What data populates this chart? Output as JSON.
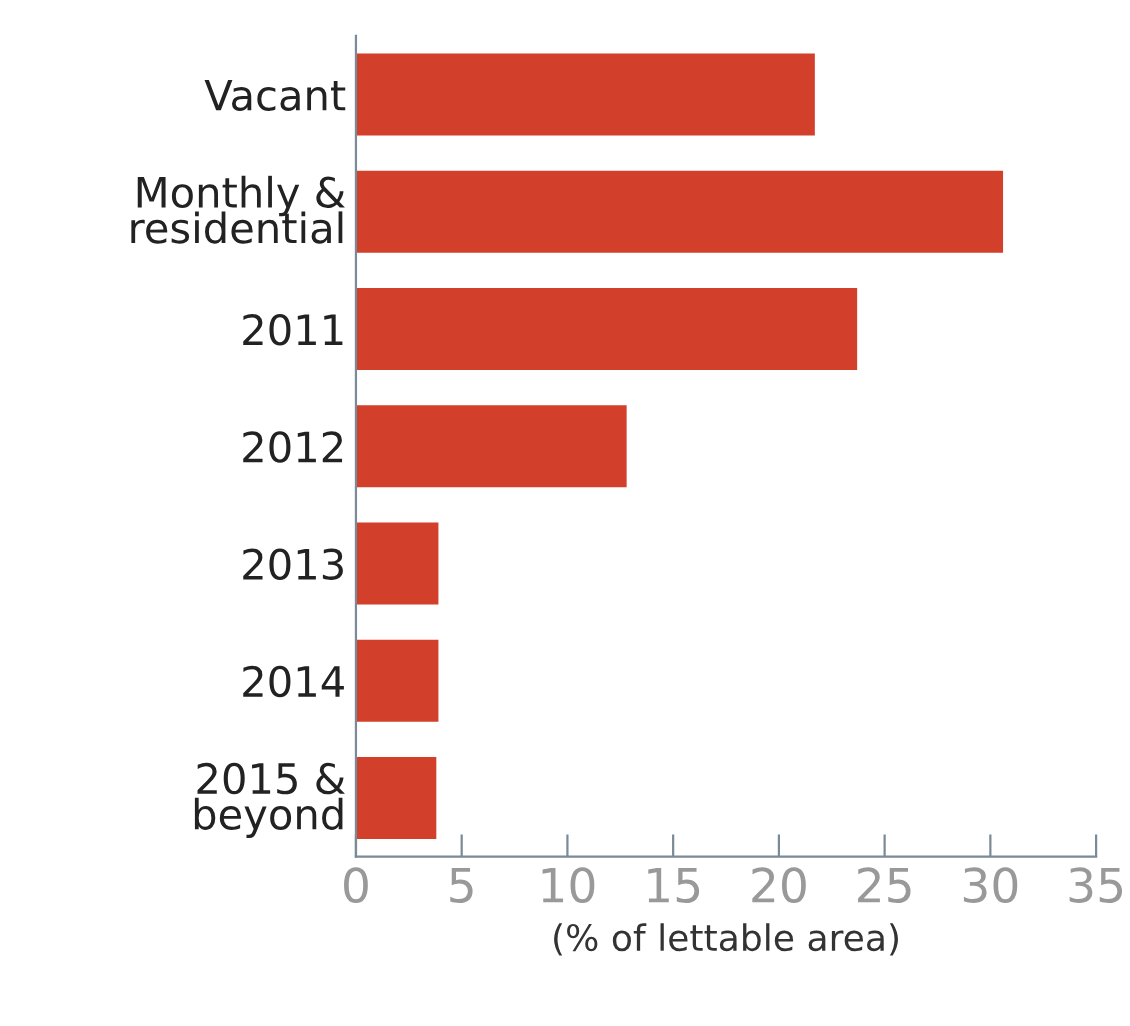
{
  "chart_data": {
    "type": "bar",
    "orientation": "horizontal",
    "xlabel": "(% of lettable area)",
    "categories": [
      "Vacant",
      "Monthly &\nresidential",
      "2011",
      "2012",
      "2013",
      "2014",
      "2015 &\nbeyond"
    ],
    "values": [
      21.7,
      30.6,
      23.7,
      12.8,
      3.9,
      3.9,
      3.8
    ],
    "color": "#d23f2a",
    "xlim": [
      0,
      35
    ],
    "xticks": [
      0,
      5,
      10,
      15,
      20,
      25,
      30,
      35
    ],
    "grid": false
  }
}
